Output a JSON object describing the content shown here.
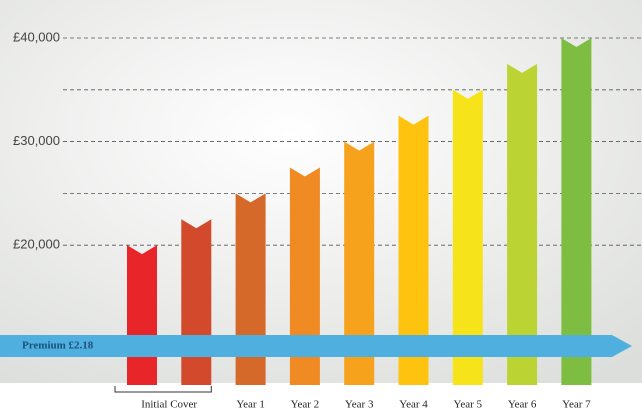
{
  "chart_data": {
    "type": "bar",
    "categories": [
      "Initial Cover",
      null,
      "Year 1",
      "Year 2",
      "Year 3",
      "Year 4",
      "Year 5",
      "Year 6",
      "Year 7"
    ],
    "values": [
      20000,
      22500,
      25000,
      27500,
      30000,
      32500,
      35000,
      37500,
      40000
    ],
    "colors": [
      "#e8262a",
      "#d2492b",
      "#d4692a",
      "#f08a23",
      "#f7a21c",
      "#fdc30f",
      "#f7e31a",
      "#bcd433",
      "#7cbd42"
    ],
    "ylim": [
      6500,
      40000
    ],
    "yticks": [
      {
        "value": 20000,
        "label": "£20,000"
      },
      {
        "value": 30000,
        "label": "£30,000"
      },
      {
        "value": 40000,
        "label": "£40,000"
      }
    ],
    "minor_gridlines": [
      25000,
      35000
    ],
    "grid": true,
    "annotation": "Premium £2.18"
  }
}
